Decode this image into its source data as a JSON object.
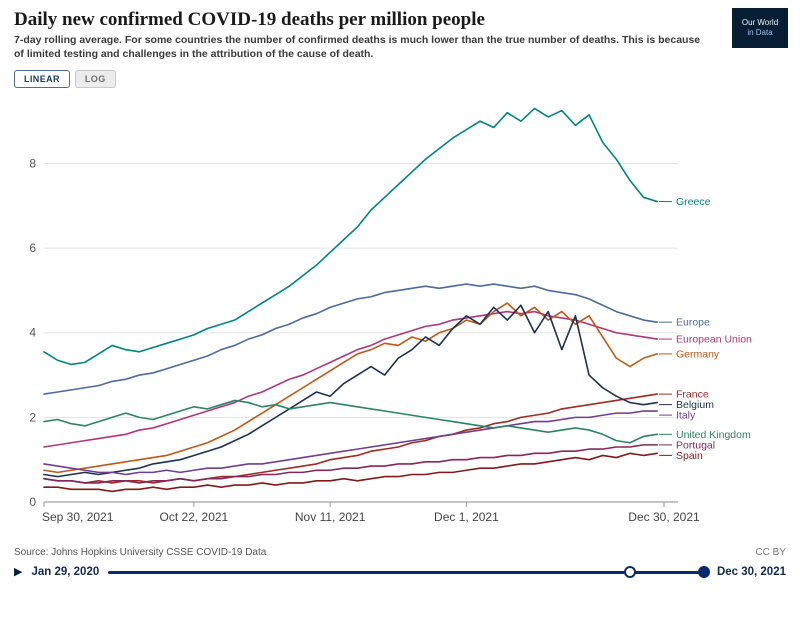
{
  "header": {
    "title": "Daily new confirmed COVID-19 deaths per million people",
    "subtitle": "7-day rolling average. For some countries the number of confirmed deaths is much lower than the true number of deaths. This is because of limited testing and challenges in the attribution of the cause of death.",
    "logo_line1": "Our World",
    "logo_line2": "in Data"
  },
  "toolbar": {
    "linear_label": "LINEAR",
    "log_label": "LOG"
  },
  "footer": {
    "source": "Source: Johns Hopkins University CSSE COVID-19 Data",
    "license": "CC BY"
  },
  "timeline": {
    "play_icon": "▶",
    "start_label": "Jan 29, 2020",
    "end_label": "Dec 30, 2021",
    "window_start_pct": 87
  },
  "chart_data": {
    "type": "line",
    "title": "Daily new confirmed COVID-19 deaths per million people",
    "x_unit": "days since Sep 30, 2021",
    "xlim": [
      0,
      91
    ],
    "ylim": [
      0,
      9.5
    ],
    "yticks": [
      0,
      2,
      4,
      6,
      8
    ],
    "xticks": [
      {
        "day": 0,
        "label": "Sep 30, 2021"
      },
      {
        "day": 22,
        "label": "Oct 22, 2021"
      },
      {
        "day": 42,
        "label": "Nov 11, 2021"
      },
      {
        "day": 62,
        "label": "Dec 1, 2021"
      },
      {
        "day": 91,
        "label": "Dec 30, 2021"
      }
    ],
    "x": [
      0,
      2,
      4,
      6,
      8,
      10,
      12,
      14,
      16,
      18,
      20,
      22,
      24,
      26,
      28,
      30,
      32,
      34,
      36,
      38,
      40,
      42,
      44,
      46,
      48,
      50,
      52,
      54,
      56,
      58,
      60,
      62,
      64,
      66,
      68,
      70,
      72,
      74,
      76,
      78,
      80,
      82,
      84,
      86,
      88,
      90
    ],
    "series": [
      {
        "name": "Greece",
        "color": "#00847E",
        "values": [
          3.55,
          3.35,
          3.25,
          3.3,
          3.5,
          3.7,
          3.6,
          3.55,
          3.65,
          3.75,
          3.85,
          3.95,
          4.1,
          4.2,
          4.3,
          4.5,
          4.7,
          4.9,
          5.1,
          5.35,
          5.6,
          5.9,
          6.2,
          6.5,
          6.9,
          7.2,
          7.5,
          7.8,
          8.1,
          8.35,
          8.6,
          8.8,
          9.0,
          8.85,
          9.2,
          9.0,
          9.3,
          9.1,
          9.25,
          8.9,
          9.15,
          8.5,
          8.1,
          7.6,
          7.2,
          7.1
        ]
      },
      {
        "name": "Europe",
        "color": "#4C6A9C",
        "values": [
          2.55,
          2.6,
          2.65,
          2.7,
          2.75,
          2.85,
          2.9,
          3.0,
          3.05,
          3.15,
          3.25,
          3.35,
          3.45,
          3.6,
          3.7,
          3.85,
          3.95,
          4.1,
          4.2,
          4.35,
          4.45,
          4.6,
          4.7,
          4.8,
          4.85,
          4.95,
          5.0,
          5.05,
          5.1,
          5.05,
          5.1,
          5.15,
          5.1,
          5.15,
          5.1,
          5.05,
          5.1,
          5.0,
          4.95,
          4.9,
          4.8,
          4.65,
          4.5,
          4.4,
          4.3,
          4.25
        ]
      },
      {
        "name": "European Union",
        "color": "#B0357B",
        "values": [
          1.3,
          1.35,
          1.4,
          1.45,
          1.5,
          1.55,
          1.6,
          1.7,
          1.75,
          1.85,
          1.95,
          2.05,
          2.15,
          2.25,
          2.35,
          2.5,
          2.6,
          2.75,
          2.9,
          3.0,
          3.15,
          3.3,
          3.45,
          3.6,
          3.7,
          3.85,
          3.95,
          4.05,
          4.15,
          4.2,
          4.3,
          4.35,
          4.4,
          4.45,
          4.5,
          4.45,
          4.5,
          4.4,
          4.35,
          4.3,
          4.2,
          4.1,
          4.0,
          3.95,
          3.9,
          3.85
        ]
      },
      {
        "name": "Germany",
        "color": "#BE5915",
        "values": [
          0.75,
          0.7,
          0.75,
          0.8,
          0.85,
          0.9,
          0.95,
          1.0,
          1.05,
          1.1,
          1.2,
          1.3,
          1.4,
          1.55,
          1.7,
          1.9,
          2.1,
          2.3,
          2.5,
          2.7,
          2.9,
          3.1,
          3.3,
          3.5,
          3.6,
          3.75,
          3.7,
          3.9,
          3.8,
          4.0,
          4.1,
          4.3,
          4.2,
          4.5,
          4.7,
          4.4,
          4.6,
          4.3,
          4.5,
          4.2,
          4.4,
          3.9,
          3.4,
          3.2,
          3.4,
          3.5
        ]
      },
      {
        "name": "France",
        "color": "#9E2B25",
        "values": [
          0.55,
          0.5,
          0.5,
          0.45,
          0.5,
          0.45,
          0.5,
          0.5,
          0.45,
          0.5,
          0.55,
          0.5,
          0.55,
          0.6,
          0.6,
          0.65,
          0.7,
          0.75,
          0.8,
          0.85,
          0.9,
          1.0,
          1.05,
          1.1,
          1.2,
          1.25,
          1.3,
          1.4,
          1.45,
          1.55,
          1.6,
          1.7,
          1.75,
          1.85,
          1.9,
          2.0,
          2.05,
          2.1,
          2.2,
          2.25,
          2.3,
          2.35,
          2.4,
          2.45,
          2.5,
          2.55
        ]
      },
      {
        "name": "Belgium",
        "color": "#1D3152",
        "values": [
          0.65,
          0.6,
          0.65,
          0.7,
          0.65,
          0.7,
          0.75,
          0.8,
          0.9,
          0.95,
          1.0,
          1.1,
          1.2,
          1.3,
          1.45,
          1.6,
          1.8,
          2.0,
          2.2,
          2.4,
          2.6,
          2.5,
          2.8,
          3.0,
          3.2,
          3.0,
          3.4,
          3.6,
          3.9,
          3.7,
          4.1,
          4.4,
          4.2,
          4.6,
          4.3,
          4.65,
          4.0,
          4.5,
          3.6,
          4.4,
          3.0,
          2.7,
          2.5,
          2.35,
          2.3,
          2.35
        ]
      },
      {
        "name": "Italy",
        "color": "#6D3E91",
        "values": [
          0.9,
          0.85,
          0.8,
          0.75,
          0.7,
          0.7,
          0.65,
          0.7,
          0.7,
          0.75,
          0.7,
          0.75,
          0.8,
          0.8,
          0.85,
          0.9,
          0.9,
          0.95,
          1.0,
          1.05,
          1.1,
          1.15,
          1.2,
          1.25,
          1.3,
          1.35,
          1.4,
          1.45,
          1.5,
          1.55,
          1.6,
          1.65,
          1.7,
          1.75,
          1.8,
          1.85,
          1.9,
          1.9,
          1.95,
          2.0,
          2.0,
          2.05,
          2.1,
          2.1,
          2.15,
          2.15
        ]
      },
      {
        "name": "United Kingdom",
        "color": "#2C8465",
        "values": [
          1.9,
          1.95,
          1.85,
          1.8,
          1.9,
          2.0,
          2.1,
          2.0,
          1.95,
          2.05,
          2.15,
          2.25,
          2.2,
          2.3,
          2.4,
          2.35,
          2.25,
          2.3,
          2.2,
          2.25,
          2.3,
          2.35,
          2.3,
          2.25,
          2.2,
          2.15,
          2.1,
          2.05,
          2.0,
          1.95,
          1.9,
          1.85,
          1.8,
          1.75,
          1.8,
          1.75,
          1.7,
          1.65,
          1.7,
          1.75,
          1.7,
          1.6,
          1.45,
          1.4,
          1.55,
          1.6
        ]
      },
      {
        "name": "Portugal",
        "color": "#86275B",
        "values": [
          0.55,
          0.5,
          0.5,
          0.45,
          0.45,
          0.5,
          0.5,
          0.45,
          0.5,
          0.5,
          0.55,
          0.5,
          0.55,
          0.55,
          0.6,
          0.6,
          0.65,
          0.65,
          0.7,
          0.7,
          0.75,
          0.75,
          0.8,
          0.8,
          0.85,
          0.85,
          0.9,
          0.9,
          0.95,
          0.95,
          1.0,
          1.0,
          1.05,
          1.05,
          1.1,
          1.1,
          1.15,
          1.15,
          1.2,
          1.2,
          1.25,
          1.25,
          1.3,
          1.3,
          1.35,
          1.35
        ]
      },
      {
        "name": "Spain",
        "color": "#801A1A",
        "values": [
          0.35,
          0.35,
          0.3,
          0.3,
          0.3,
          0.25,
          0.3,
          0.3,
          0.35,
          0.3,
          0.35,
          0.35,
          0.4,
          0.35,
          0.4,
          0.4,
          0.45,
          0.4,
          0.45,
          0.45,
          0.5,
          0.5,
          0.55,
          0.5,
          0.55,
          0.6,
          0.6,
          0.65,
          0.65,
          0.7,
          0.7,
          0.75,
          0.8,
          0.8,
          0.85,
          0.9,
          0.9,
          0.95,
          1.0,
          1.05,
          1.0,
          1.1,
          1.05,
          1.15,
          1.1,
          1.15
        ]
      }
    ]
  }
}
